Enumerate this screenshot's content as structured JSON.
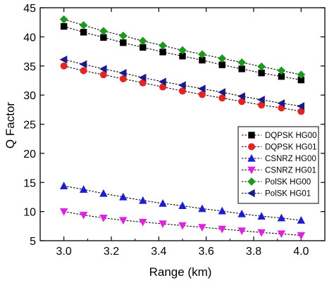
{
  "chart_data": {
    "type": "line",
    "xlabel": "Range (km)",
    "ylabel": "Q Factor",
    "xlim": [
      2.9,
      4.1
    ],
    "ylim": [
      5,
      45
    ],
    "xticks": [
      "3.0",
      "3.2",
      "3.4",
      "3.6",
      "3.8",
      "4.0"
    ],
    "yticks": [
      "5",
      "10",
      "15",
      "20",
      "25",
      "30",
      "35",
      "40",
      "45"
    ],
    "x": [
      3.0,
      3.083,
      3.167,
      3.25,
      3.333,
      3.417,
      3.5,
      3.583,
      3.667,
      3.75,
      3.833,
      3.917,
      4.0
    ],
    "legend_position": "center-right",
    "grid": false,
    "series": [
      {
        "name": "DQPSK HG00",
        "color": "#000000",
        "marker": "square",
        "values": [
          41.8,
          40.8,
          39.9,
          39.0,
          38.2,
          37.4,
          36.7,
          36.0,
          35.2,
          34.5,
          33.8,
          33.2,
          32.6
        ]
      },
      {
        "name": "DQPSK HG01",
        "color": "#e8231f",
        "marker": "circle",
        "values": [
          35.0,
          34.2,
          33.5,
          32.8,
          32.1,
          31.4,
          30.7,
          30.1,
          29.5,
          28.9,
          28.3,
          27.8,
          27.2
        ]
      },
      {
        "name": "CSNRZ HG00",
        "color": "#1c1cd6",
        "marker": "triangle-up",
        "values": [
          14.4,
          13.8,
          13.1,
          12.5,
          11.9,
          11.4,
          11.0,
          10.5,
          10.1,
          9.6,
          9.2,
          8.9,
          8.5
        ]
      },
      {
        "name": "CSNRZ HG01",
        "color": "#e51ee5",
        "marker": "triangle-down",
        "values": [
          10.0,
          9.4,
          8.9,
          8.5,
          8.2,
          7.9,
          7.6,
          7.3,
          7.0,
          6.7,
          6.4,
          6.2,
          5.9
        ]
      },
      {
        "name": "PolSK HG00",
        "color": "#1a9a1a",
        "marker": "diamond",
        "values": [
          43.0,
          42.0,
          41.0,
          40.2,
          39.3,
          38.5,
          37.7,
          37.0,
          36.3,
          35.6,
          34.9,
          34.2,
          33.5
        ]
      },
      {
        "name": "PolSK HG01",
        "color": "#1a1a8c",
        "marker": "triangle-left",
        "values": [
          36.1,
          35.3,
          34.5,
          33.8,
          33.0,
          32.3,
          31.7,
          31.1,
          30.5,
          29.8,
          29.2,
          28.6,
          28.1
        ]
      }
    ]
  }
}
